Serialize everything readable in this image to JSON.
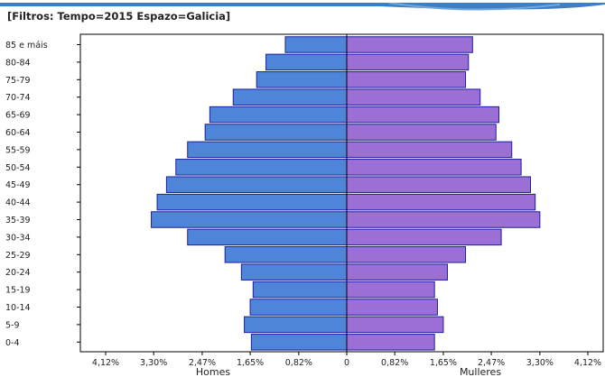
{
  "page": {
    "filter_caption": "[Filtros: Tempo=2015 Espazo=Galicia]"
  },
  "colors": {
    "male_fill": "#4f85d9",
    "female_fill": "#9b6fd6",
    "bar_stroke": "#1c1f9e",
    "axis": "#000000",
    "banner": "#3d7fc4"
  },
  "chart_data": {
    "type": "bar",
    "orientation": "horizontal",
    "categories": [
      "0-4",
      "5-9",
      "10-14",
      "15-19",
      "20-24",
      "25-29",
      "30-34",
      "35-39",
      "40-44",
      "45-49",
      "50-54",
      "55-59",
      "60-64",
      "65-69",
      "70-74",
      "75-79",
      "80-84",
      "85 e máis"
    ],
    "series": [
      {
        "name": "Homes",
        "values": [
          1.63,
          1.75,
          1.65,
          1.6,
          1.8,
          2.08,
          2.72,
          3.34,
          3.24,
          3.08,
          2.92,
          2.72,
          2.42,
          2.34,
          1.94,
          1.54,
          1.38,
          1.05
        ]
      },
      {
        "name": "Mulleres",
        "values": [
          1.5,
          1.65,
          1.55,
          1.5,
          1.72,
          2.03,
          2.64,
          3.3,
          3.22,
          3.14,
          2.98,
          2.82,
          2.55,
          2.6,
          2.28,
          2.03,
          2.08,
          2.15
        ]
      }
    ],
    "xlabel": "",
    "ylabel": "",
    "ylim": [
      -4.35,
      3.35
    ],
    "tick_values": [
      -4.12,
      -3.3,
      -2.47,
      -1.65,
      -0.82,
      0,
      0.82,
      1.65,
      2.47,
      3.3,
      4.12
    ],
    "tick_labels": [
      "4,12%",
      "3,30%",
      "2,47%",
      "1,65%",
      "0,82%",
      "0",
      "0,82%",
      "1,65%",
      "2,47%",
      "3,30%",
      "4,12%"
    ],
    "legend": "none",
    "grid": false
  }
}
